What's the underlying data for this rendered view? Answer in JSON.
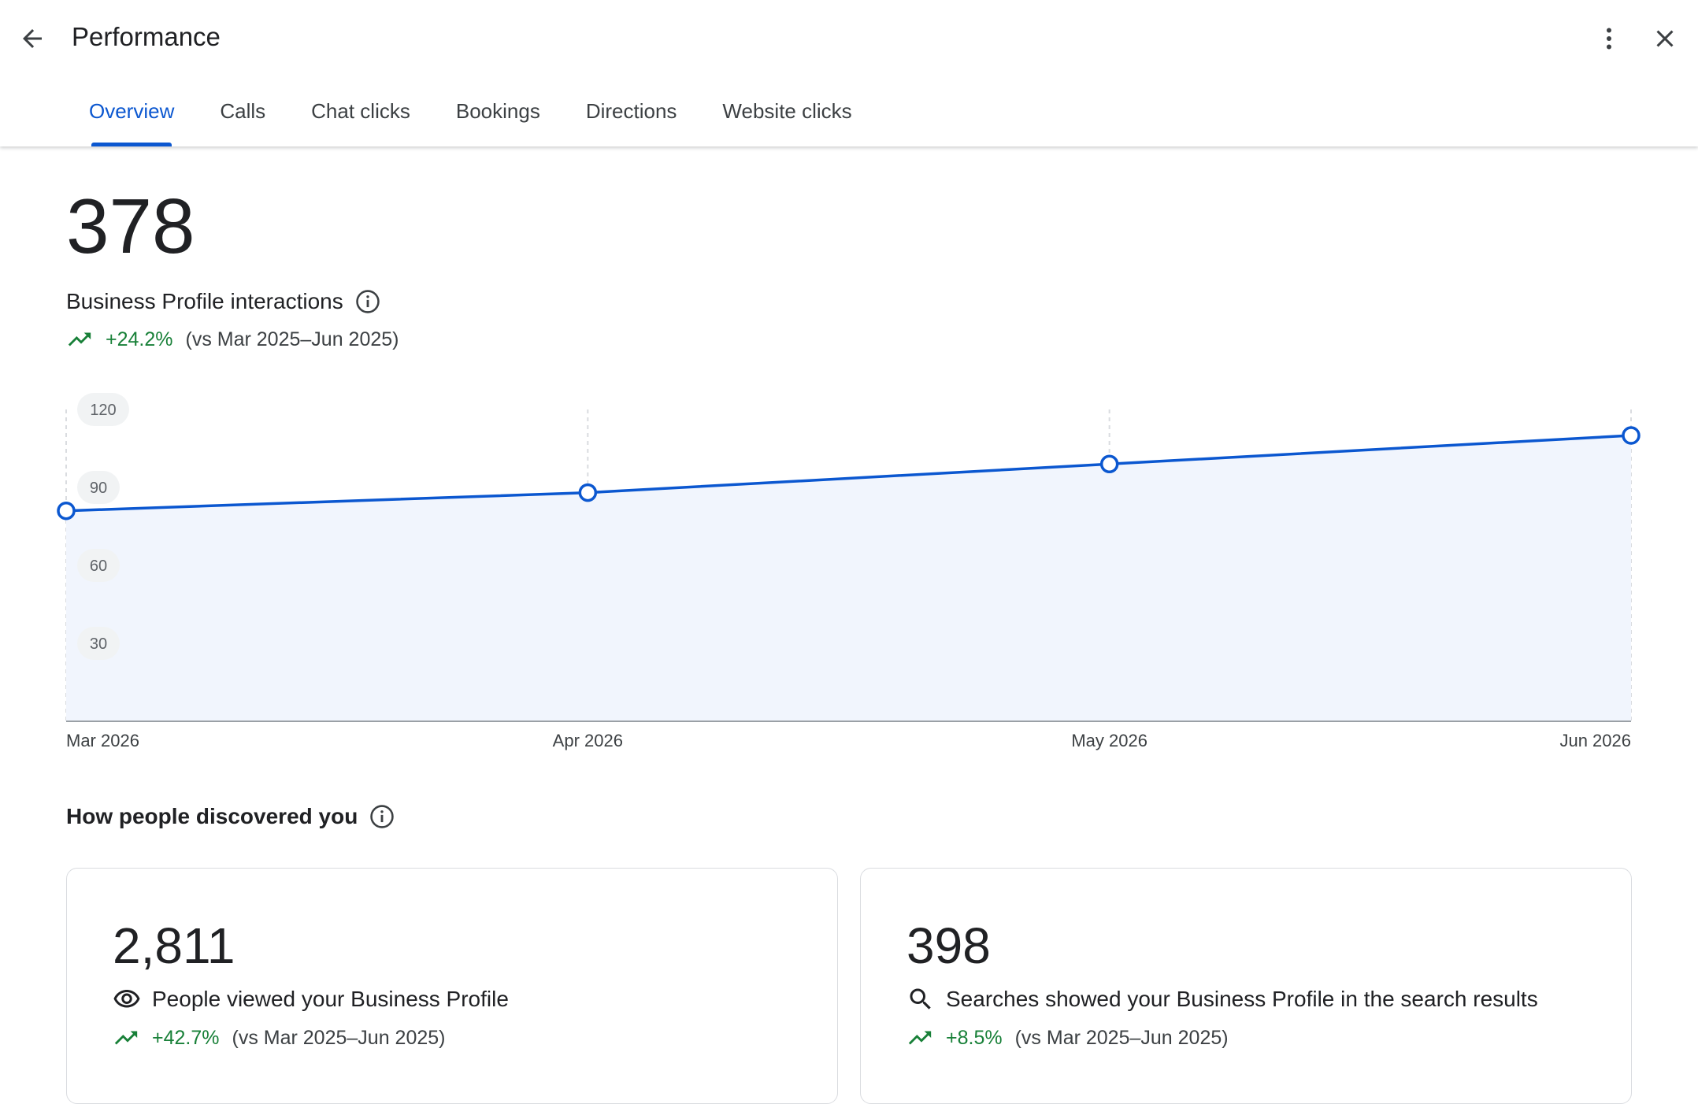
{
  "header": {
    "title": "Performance",
    "tabs": [
      {
        "label": "Overview",
        "active": true
      },
      {
        "label": "Calls"
      },
      {
        "label": "Chat clicks"
      },
      {
        "label": "Bookings"
      },
      {
        "label": "Directions"
      },
      {
        "label": "Website clicks"
      }
    ]
  },
  "summary": {
    "value": "378",
    "label": "Business Profile interactions",
    "change": "+24.2%",
    "comparison": "(vs Mar 2025–Jun 2025)"
  },
  "chart_data": {
    "type": "area",
    "categories": [
      "Mar 2026",
      "Apr 2026",
      "May 2026",
      "Jun 2026"
    ],
    "values": [
      81,
      88,
      99,
      110
    ],
    "y_ticks": [
      "30",
      "60",
      "90",
      "120"
    ],
    "ylim": [
      0,
      120
    ],
    "grid": "vertical dashed",
    "line_color": "#0b57d0",
    "fill_color": "#f1f5fd"
  },
  "discovery": {
    "title": "How people discovered you",
    "cards": [
      {
        "value": "2,811",
        "icon": "eye-icon",
        "label": "People viewed your Business Profile",
        "change": "+42.7%",
        "comparison": "(vs Mar 2025–Jun 2025)"
      },
      {
        "value": "398",
        "icon": "search-icon",
        "label": "Searches showed your Business Profile in the search results",
        "change": "+8.5%",
        "comparison": "(vs Mar 2025–Jun 2025)"
      }
    ]
  },
  "colors": {
    "accent": "#0b57d0",
    "positive": "#188038"
  }
}
